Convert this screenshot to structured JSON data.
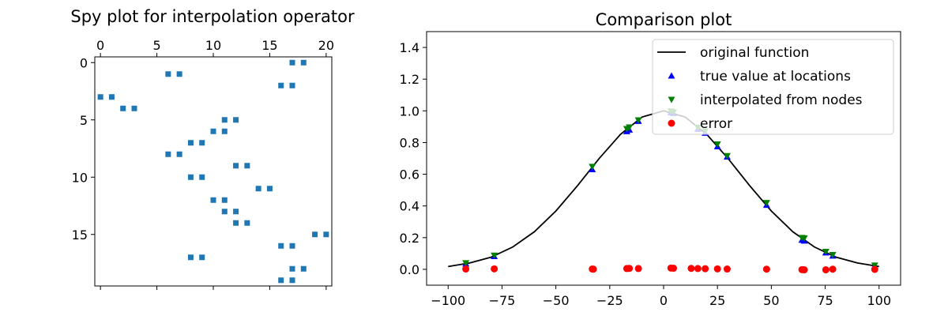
{
  "chart_data": [
    {
      "type": "spy",
      "title": "Spy plot for interpolation operator",
      "xlim": [
        -0.5,
        20.5
      ],
      "ylim": [
        19.5,
        -0.5
      ],
      "xticks": [
        0,
        5,
        10,
        15,
        20
      ],
      "yticks": [
        0,
        5,
        10,
        15
      ],
      "marker_color": "#1f77b4",
      "nonzeros": [
        [
          0,
          17
        ],
        [
          0,
          18
        ],
        [
          1,
          6
        ],
        [
          1,
          7
        ],
        [
          2,
          16
        ],
        [
          2,
          17
        ],
        [
          3,
          0
        ],
        [
          3,
          1
        ],
        [
          4,
          2
        ],
        [
          4,
          3
        ],
        [
          5,
          11
        ],
        [
          5,
          12
        ],
        [
          6,
          10
        ],
        [
          6,
          11
        ],
        [
          7,
          8
        ],
        [
          7,
          9
        ],
        [
          8,
          6
        ],
        [
          8,
          7
        ],
        [
          9,
          12
        ],
        [
          9,
          13
        ],
        [
          10,
          8
        ],
        [
          10,
          9
        ],
        [
          11,
          14
        ],
        [
          11,
          15
        ],
        [
          12,
          10
        ],
        [
          12,
          11
        ],
        [
          13,
          11
        ],
        [
          13,
          12
        ],
        [
          14,
          12
        ],
        [
          14,
          13
        ],
        [
          15,
          19
        ],
        [
          15,
          20
        ],
        [
          16,
          16
        ],
        [
          16,
          17
        ],
        [
          17,
          8
        ],
        [
          17,
          9
        ],
        [
          18,
          17
        ],
        [
          18,
          18
        ],
        [
          19,
          16
        ],
        [
          19,
          17
        ]
      ]
    },
    {
      "type": "line",
      "title": "Comparison plot",
      "xlim": [
        -110,
        110
      ],
      "ylim": [
        -0.1,
        1.5
      ],
      "xticks": [
        -100,
        -75,
        -50,
        -25,
        0,
        25,
        50,
        75,
        100
      ],
      "xtick_labels": [
        "−100",
        "−75",
        "−50",
        "−25",
        "0",
        "25",
        "50",
        "75",
        "100"
      ],
      "yticks": [
        0.0,
        0.2,
        0.4,
        0.6,
        0.8,
        1.0,
        1.2,
        1.4
      ],
      "ytick_labels": [
        "0.0",
        "0.2",
        "0.4",
        "0.6",
        "0.8",
        "1.0",
        "1.2",
        "1.4"
      ],
      "legend": {
        "position": "top-right"
      },
      "series": [
        {
          "name": "original function",
          "kind": "line",
          "color": "#000000",
          "x": [
            -100,
            -90,
            -80,
            -70,
            -60,
            -50,
            -40,
            -30,
            -20,
            -10,
            0,
            10,
            20,
            30,
            40,
            50,
            60,
            70,
            80,
            90,
            100
          ],
          "y": [
            0.018,
            0.04,
            0.077,
            0.141,
            0.237,
            0.368,
            0.527,
            0.698,
            0.852,
            0.961,
            1.0,
            0.961,
            0.852,
            0.698,
            0.527,
            0.368,
            0.237,
            0.141,
            0.077,
            0.04,
            0.018
          ]
        },
        {
          "name": "true value at locations",
          "kind": "scatter",
          "marker": "triangle-up",
          "color": "#0000ff",
          "x": [
            -91.8,
            -78.6,
            -33.1,
            -15.9,
            -17.1,
            -11.7,
            3.4,
            4.6,
            15.9,
            19.3,
            25.0,
            29.5,
            47.8,
            64.2,
            65.3,
            75.3,
            78.5,
            98.0
          ],
          "y": [
            0.035,
            0.082,
            0.63,
            0.88,
            0.87,
            0.935,
            0.99,
            0.985,
            0.885,
            0.86,
            0.775,
            0.71,
            0.405,
            0.185,
            0.18,
            0.105,
            0.085,
            0.022
          ]
        },
        {
          "name": "interpolated from nodes",
          "kind": "scatter",
          "marker": "triangle-down",
          "color": "#008000",
          "x": [
            -91.8,
            -78.6,
            -33.1,
            -15.9,
            -17.1,
            -11.7,
            3.4,
            4.6,
            15.9,
            19.3,
            25.0,
            29.5,
            47.8,
            64.2,
            65.3,
            75.3,
            78.5,
            98.0
          ],
          "y": [
            0.04,
            0.088,
            0.648,
            0.897,
            0.887,
            0.942,
            0.998,
            0.992,
            0.895,
            0.872,
            0.79,
            0.716,
            0.42,
            0.2,
            0.197,
            0.112,
            0.092,
            0.025
          ]
        },
        {
          "name": "error",
          "kind": "scatter",
          "marker": "circle",
          "color": "#ff0000",
          "x": [
            -91.8,
            -78.6,
            -33.1,
            -32.6,
            -17.1,
            -15.9,
            -11.7,
            3.4,
            4.6,
            12.8,
            15.9,
            19.3,
            25.0,
            29.5,
            47.8,
            64.2,
            65.3,
            75.3,
            78.5,
            98.0
          ],
          "y": [
            0.002,
            0.003,
            0.002,
            0.001,
            0.005,
            0.006,
            0.005,
            0.008,
            0.007,
            0.006,
            0.005,
            0.004,
            0.003,
            0.002,
            0.001,
            -0.002,
            -0.003,
            -0.003,
            0.001,
            0.0
          ]
        }
      ]
    }
  ]
}
